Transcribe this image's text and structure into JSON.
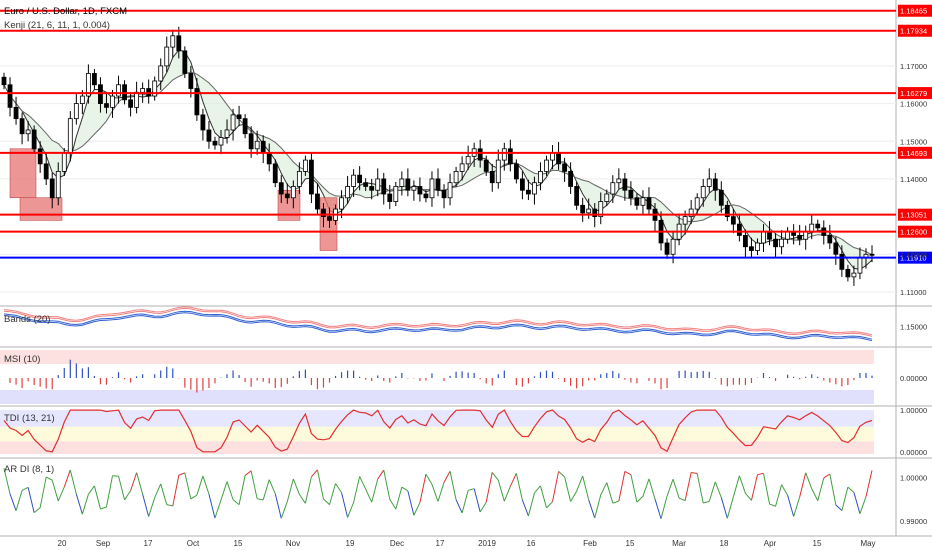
{
  "header": {
    "title": "Euro / U.S. Dollar, 1D, FXCM",
    "indicator": "Kenji (21, 6, 11, 1, 0.004)"
  },
  "colors": {
    "level_line": "#ff0000",
    "current_line": "#0000ff",
    "up_candle": "#ffffff",
    "down_candle": "#000000",
    "sell_text": "#f06060",
    "buy_text": "#4050c0",
    "box_fill": "#e57373",
    "band_red": "#f08080",
    "band_blue": "#3060d0"
  },
  "chart_data": [
    {
      "name": "price",
      "type": "candlestick",
      "title": "Euro / U.S. Dollar, 1D, FXCM",
      "ylim": [
        1.1068,
        1.1875
      ],
      "price_labels": [
        "1.17000",
        "1.16000",
        "1.15000",
        "1.14000",
        "1.12000",
        "1.11000"
      ],
      "price_label_values": [
        1.17,
        1.16,
        1.15,
        1.14,
        1.12,
        1.11
      ],
      "levels": [
        {
          "label": "1.18465",
          "value": 1.18465
        },
        {
          "label": "1.17934",
          "value": 1.17934
        },
        {
          "label": "1.16279",
          "value": 1.16279
        },
        {
          "label": "1.14693",
          "value": 1.14693
        },
        {
          "label": "1.13051",
          "value": 1.13051
        },
        {
          "label": "1.12600",
          "value": 1.126
        },
        {
          "label": "1.11910",
          "value": 1.1191,
          "current": true
        }
      ],
      "last_price": {
        "label": "1.11992",
        "value": 1.11992
      },
      "x_axis_labels": [
        "20",
        "Sep",
        "17",
        "Oct",
        "15",
        "Nov",
        "19",
        "Dec",
        "17",
        "2019",
        "16",
        "Feb",
        "15",
        "Mar",
        "18",
        "Apr",
        "15",
        "May"
      ],
      "closes": [
        1.165,
        1.159,
        1.156,
        1.152,
        1.153,
        1.148,
        1.144,
        1.14,
        1.135,
        1.142,
        1.147,
        1.156,
        1.16,
        1.162,
        1.168,
        1.165,
        1.16,
        1.159,
        1.162,
        1.165,
        1.161,
        1.159,
        1.163,
        1.164,
        1.162,
        1.166,
        1.17,
        1.175,
        1.178,
        1.174,
        1.168,
        1.164,
        1.157,
        1.153,
        1.15,
        1.149,
        1.151,
        1.153,
        1.157,
        1.156,
        1.152,
        1.148,
        1.15,
        1.147,
        1.144,
        1.139,
        1.136,
        1.135,
        1.138,
        1.142,
        1.145,
        1.136,
        1.132,
        1.13,
        1.129,
        1.132,
        1.135,
        1.138,
        1.141,
        1.139,
        1.138,
        1.137,
        1.14,
        1.136,
        1.134,
        1.138,
        1.14,
        1.137,
        1.138,
        1.136,
        1.135,
        1.14,
        1.137,
        1.135,
        1.139,
        1.142,
        1.144,
        1.146,
        1.148,
        1.145,
        1.142,
        1.139,
        1.145,
        1.148,
        1.144,
        1.14,
        1.137,
        1.136,
        1.139,
        1.142,
        1.145,
        1.147,
        1.144,
        1.142,
        1.138,
        1.133,
        1.131,
        1.132,
        1.13,
        1.134,
        1.136,
        1.139,
        1.14,
        1.137,
        1.135,
        1.133,
        1.135,
        1.132,
        1.129,
        1.123,
        1.12,
        1.124,
        1.128,
        1.13,
        1.132,
        1.135,
        1.138,
        1.14,
        1.137,
        1.133,
        1.13,
        1.128,
        1.125,
        1.122,
        1.121,
        1.123,
        1.126,
        1.124,
        1.122,
        1.124,
        1.126,
        1.125,
        1.124,
        1.126,
        1.128,
        1.127,
        1.125,
        1.123,
        1.12,
        1.116,
        1.114,
        1.115,
        1.119,
        1.12,
        1.1199
      ]
    },
    {
      "name": "bands",
      "type": "line",
      "title": "Bands (20)",
      "ylim": [
        1.138,
        1.162
      ],
      "tick_labels": [
        "1.15000"
      ],
      "tick_values": [
        1.15
      ]
    },
    {
      "name": "msi",
      "type": "bar",
      "title": "MSI (10)",
      "ylim": [
        -1,
        1
      ],
      "tick_labels": [
        "0.00000"
      ],
      "tick_values": [
        0
      ]
    },
    {
      "name": "tdi",
      "type": "line",
      "title": "TDI (13, 21)",
      "ylim": [
        -0.1,
        1.05
      ],
      "tick_labels": [
        "1.00000",
        "0.00000"
      ],
      "tick_values": [
        1,
        0
      ]
    },
    {
      "name": "ardi",
      "type": "line",
      "title": "AR DI (8, 1)",
      "ylim": [
        0.987,
        1.004
      ],
      "tick_labels": [
        "1.00000",
        "0.99000"
      ],
      "tick_values": [
        1.0,
        0.99
      ]
    }
  ]
}
